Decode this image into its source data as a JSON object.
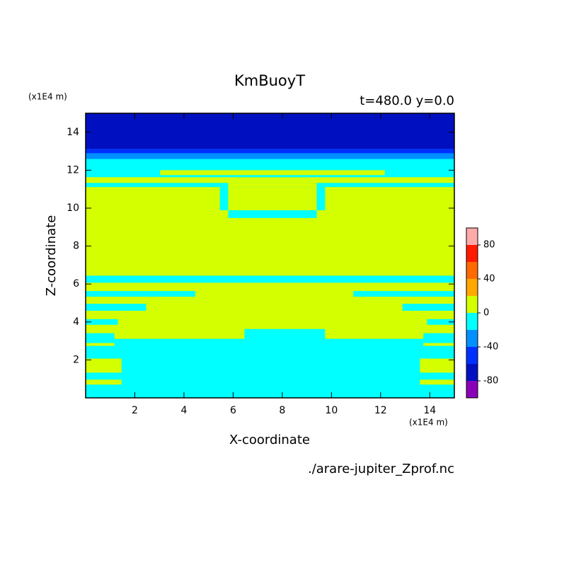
{
  "chart_data": {
    "type": "contour",
    "title": "KmBuoyT",
    "subtitle": "t=480.0 y=0.0",
    "x_label": "X-coordinate",
    "y_label": "Z-coordinate",
    "x_unit": "(x1E4 m)",
    "y_unit": "(x1E4 m)",
    "source": "./arare-jupiter_Zprof.nc",
    "xlim": [
      0,
      15
    ],
    "ylim": [
      0,
      15
    ],
    "xticks": [
      2,
      4,
      6,
      8,
      10,
      12,
      14
    ],
    "yticks": [
      2,
      4,
      6,
      8,
      10,
      12,
      14
    ],
    "colorbar": {
      "levels": [
        -100,
        -80,
        -60,
        -40,
        -20,
        0,
        20,
        40,
        60,
        80,
        100
      ],
      "colors": [
        "#8a00b8",
        "#0010c0",
        "#0030ff",
        "#0090ff",
        "#00ffff",
        "#d4ff00",
        "#ffa800",
        "#ff6a00",
        "#ff1a00",
        "#ffaaaa"
      ],
      "ticks": [
        -80,
        -40,
        0,
        40,
        80
      ]
    },
    "regions": [
      {
        "level": -20,
        "box": [
          0,
          0,
          15,
          15
        ]
      },
      {
        "level": -80,
        "box": [
          0,
          13.11,
          15,
          15
        ]
      },
      {
        "level": -60,
        "box": [
          0,
          12.89,
          15,
          13.11
        ]
      },
      {
        "level": -40,
        "box": [
          0,
          12.59,
          15,
          12.89
        ]
      },
      {
        "level": 0,
        "box": [
          3.03,
          11.74,
          12.17,
          12.0
        ]
      },
      {
        "level": 0,
        "box": [
          0,
          11.33,
          15,
          11.63
        ]
      },
      {
        "level": 0,
        "box": [
          0,
          6.44,
          15,
          11.11
        ]
      },
      {
        "level": 0,
        "box": [
          5.8,
          11.11,
          9.4,
          11.33
        ]
      },
      {
        "level": -20,
        "box": [
          5.46,
          9.89,
          5.8,
          11.11
        ]
      },
      {
        "level": -20,
        "box": [
          9.4,
          9.89,
          9.74,
          11.11
        ]
      },
      {
        "level": -20,
        "box": [
          5.8,
          9.48,
          9.4,
          9.89
        ]
      },
      {
        "level": 0,
        "poly": [
          [
            0,
            6.07
          ],
          [
            15,
            6.07
          ],
          [
            15,
            3.41
          ],
          [
            13.74,
            3.41
          ],
          [
            13.74,
            3.11
          ],
          [
            9.74,
            3.11
          ],
          [
            9.74,
            3.63
          ],
          [
            6.46,
            3.63
          ],
          [
            6.46,
            3.11
          ],
          [
            1.17,
            3.11
          ],
          [
            1.17,
            3.41
          ],
          [
            0,
            3.41
          ]
        ]
      },
      {
        "level": -20,
        "box": [
          0,
          5.33,
          4.46,
          5.63
        ]
      },
      {
        "level": -20,
        "box": [
          0,
          4.59,
          2.46,
          4.96
        ]
      },
      {
        "level": -20,
        "box": [
          0,
          3.85,
          1.31,
          4.15
        ]
      },
      {
        "level": -20,
        "box": [
          10.89,
          5.33,
          15,
          5.63
        ]
      },
      {
        "level": -20,
        "box": [
          12.89,
          4.59,
          15,
          4.96
        ]
      },
      {
        "level": -20,
        "box": [
          13.89,
          3.85,
          15,
          4.15
        ]
      },
      {
        "level": 0,
        "box": [
          0,
          2.74,
          1.17,
          2.89
        ]
      },
      {
        "level": 0,
        "box": [
          0,
          1.33,
          1.46,
          2.07
        ]
      },
      {
        "level": 0,
        "box": [
          0,
          0.7,
          1.46,
          0.96
        ]
      },
      {
        "level": 0,
        "box": [
          13.74,
          2.74,
          15,
          2.89
        ]
      },
      {
        "level": 0,
        "box": [
          13.6,
          1.33,
          15,
          2.07
        ]
      },
      {
        "level": 0,
        "box": [
          13.6,
          0.7,
          15,
          0.96
        ]
      }
    ]
  }
}
